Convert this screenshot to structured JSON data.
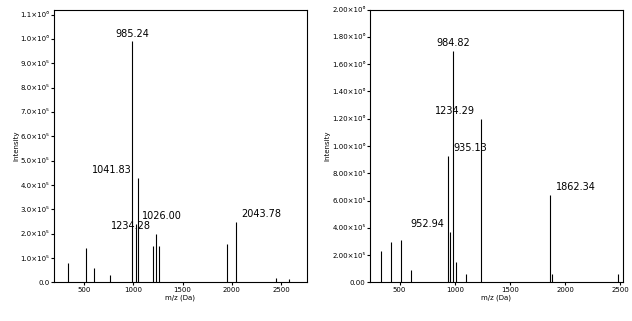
{
  "chart_data": [
    {
      "type": "stem",
      "color": "#000000",
      "x_label": "m/z (Da)",
      "y_label": "Intensity",
      "x": [
        340,
        520,
        600,
        760,
        985.24,
        1026.0,
        1041.83,
        1200,
        1234.28,
        1260,
        1950,
        2043.78,
        2450,
        2580
      ],
      "values": [
        80000,
        140000,
        60000,
        30000,
        990000,
        240000,
        430000,
        150000,
        200000,
        150000,
        160000,
        250000,
        20000,
        15000
      ],
      "annotations": [
        {
          "x": 985.24,
          "label": "985.24"
        },
        {
          "x": 1041.83,
          "label": "1041.83"
        },
        {
          "x": 1026.0,
          "label": "1026.00"
        },
        {
          "x": 1234.28,
          "label": "1234.28"
        },
        {
          "x": 2043.78,
          "label": "2043.78"
        }
      ],
      "xlim": [
        190,
        2760
      ],
      "xticks": [
        500,
        1000,
        1500,
        2000,
        2500
      ],
      "ylim": [
        0,
        1120000
      ],
      "yticks": [
        {
          "value": 0,
          "label": "0.0"
        },
        {
          "value": 100000,
          "label": "1.0×10⁵"
        },
        {
          "value": 200000,
          "label": "2.0×10⁵"
        },
        {
          "value": 300000,
          "label": "3.0×10⁵"
        },
        {
          "value": 400000,
          "label": "4.0×10⁵"
        },
        {
          "value": 500000,
          "label": "5.0×10⁵"
        },
        {
          "value": 600000,
          "label": "6.0×10⁵"
        },
        {
          "value": 700000,
          "label": "7.0×10⁵"
        },
        {
          "value": 800000,
          "label": "8.0×10⁵"
        },
        {
          "value": 900000,
          "label": "9.0×10⁵"
        },
        {
          "value": 1000000,
          "label": "1.0×10⁶"
        },
        {
          "value": 1100000,
          "label": "1.1×10⁶"
        }
      ]
    },
    {
      "type": "stem",
      "color": "#000000",
      "x_label": "m/z (Da)",
      "y_label": "Intensity",
      "x": [
        330,
        420,
        510,
        600,
        935.13,
        952.94,
        984.82,
        1010,
        1100,
        1234.29,
        1862.34,
        1880,
        2480
      ],
      "values": [
        230000,
        300000,
        310000,
        90000,
        930000,
        370000,
        1700000,
        150000,
        60000,
        1200000,
        640000,
        60000,
        60000
      ],
      "annotations": [
        {
          "x": 984.82,
          "label": "984.82"
        },
        {
          "x": 1234.29,
          "label": "1234.29"
        },
        {
          "x": 935.13,
          "label": "935.13"
        },
        {
          "x": 952.94,
          "label": "952.94"
        },
        {
          "x": 1862.34,
          "label": "1862.34"
        }
      ],
      "xlim": [
        230,
        2520
      ],
      "xticks": [
        500,
        1000,
        1500,
        2000,
        2500
      ],
      "ylim": [
        0,
        2000000
      ],
      "yticks": [
        {
          "value": 0,
          "label": "0.00"
        },
        {
          "value": 200000,
          "label": "2.00×10⁵"
        },
        {
          "value": 400000,
          "label": "4.00×10⁵"
        },
        {
          "value": 600000,
          "label": "6.00×10⁵"
        },
        {
          "value": 800000,
          "label": "8.00×10⁵"
        },
        {
          "value": 1000000,
          "label": "1.00×10⁶"
        },
        {
          "value": 1200000,
          "label": "1.20×10⁶"
        },
        {
          "value": 1400000,
          "label": "1.40×10⁶"
        },
        {
          "value": 1600000,
          "label": "1.60×10⁶"
        },
        {
          "value": 1800000,
          "label": "1.80×10⁶"
        },
        {
          "value": 2000000,
          "label": "2.00×10⁶"
        }
      ]
    }
  ]
}
